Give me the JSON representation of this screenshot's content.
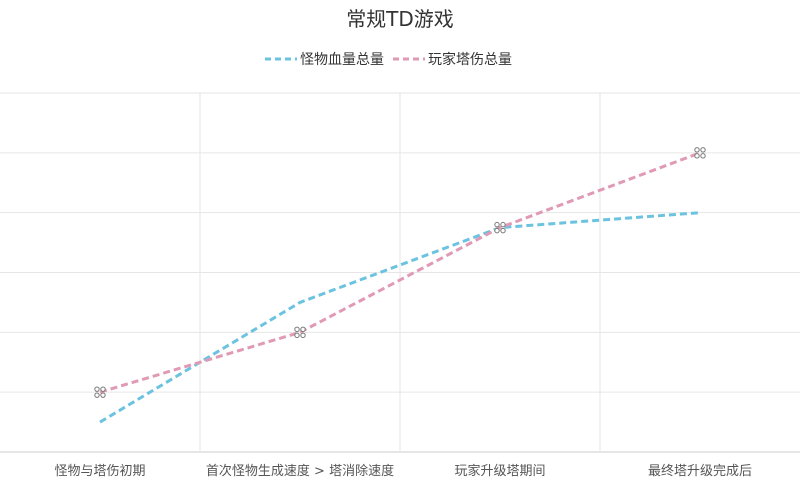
{
  "chart_data": {
    "type": "line",
    "title": "常规TD游戏",
    "categories": [
      "怪物与塔伤初期",
      "首次怪物生成速度 > 塔消除速度",
      "玩家升级塔期间",
      "最终塔升级完成后"
    ],
    "series": [
      {
        "name": "怪物血量总量",
        "color": "#6cc3e0",
        "values": [
          0.5,
          2.5,
          3.75,
          4.0
        ]
      },
      {
        "name": "玩家塔伤总量",
        "color": "#e09ab5",
        "values": [
          1.0,
          2.0,
          3.75,
          5.0
        ]
      }
    ],
    "xlabel": "",
    "ylabel": "",
    "ylim": [
      0,
      6
    ],
    "grid": true,
    "legend": "top-center",
    "marker_series": "玩家塔伤总量"
  }
}
